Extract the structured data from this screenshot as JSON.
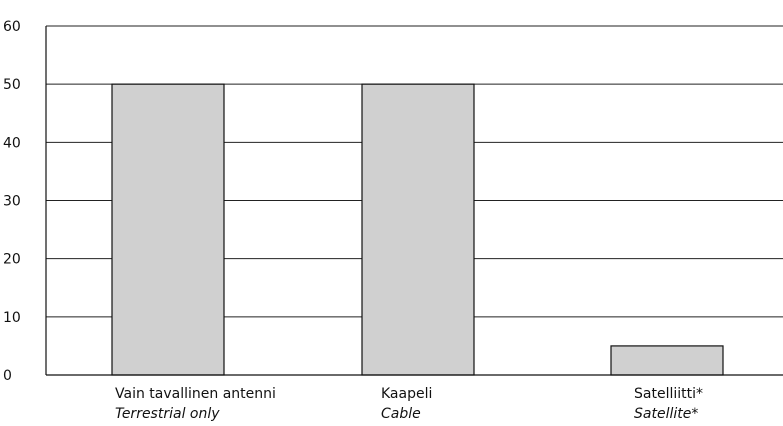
{
  "chart_data": {
    "type": "bar",
    "categories": [
      {
        "fi": "Vain tavallinen antenni",
        "en": "Terrestrial only"
      },
      {
        "fi": "Kaapeli",
        "en": "Cable"
      },
      {
        "fi": "Satelliitti*",
        "en": "Satellite*"
      }
    ],
    "values": [
      50,
      50,
      5
    ],
    "ylim": [
      0,
      60
    ],
    "yticks": [
      "0",
      "10",
      "20",
      "30",
      "40",
      "50",
      "60"
    ],
    "grid": true,
    "colors": {
      "bar_fill": "#d0d0d0",
      "bar_stroke": "#111111",
      "grid": "#222222",
      "axis": "#111111"
    }
  }
}
